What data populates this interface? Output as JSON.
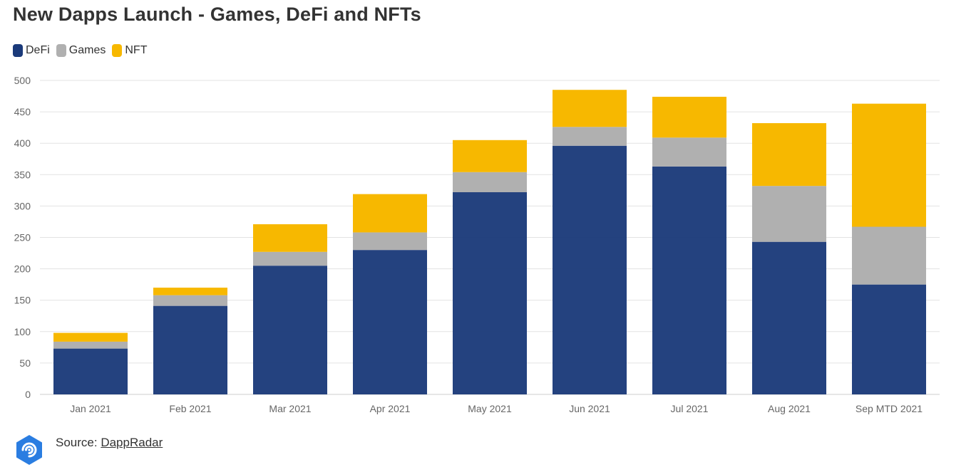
{
  "title": "New Dapps Launch - Games, DeFi and NFTs",
  "legend": [
    {
      "name": "DeFi",
      "color": "#1b3a7a"
    },
    {
      "name": "Games",
      "color": "#b0b0b0"
    },
    {
      "name": "NFT",
      "color": "#f7b800"
    }
  ],
  "source": {
    "prefix": "Source:",
    "link_text": "DappRadar"
  },
  "logo": {
    "icon": "dappradar-logo-icon",
    "color": "#2a7de1"
  },
  "chart_data": {
    "type": "bar",
    "stacked": true,
    "title": "New Dapps Launch - Games, DeFi and NFTs",
    "xlabel": "",
    "ylabel": "",
    "ylim": [
      0,
      500
    ],
    "yticks": [
      0,
      50,
      100,
      150,
      200,
      250,
      300,
      350,
      400,
      450,
      500
    ],
    "grid": true,
    "legend_position": "top-left",
    "categories": [
      "Jan 2021",
      "Feb 2021",
      "Mar 2021",
      "Apr 2021",
      "May 2021",
      "Jun 2021",
      "Jul 2021",
      "Aug 2021",
      "Sep MTD 2021"
    ],
    "series": [
      {
        "name": "DeFi",
        "color": "#1b3a7a",
        "values": [
          73,
          141,
          205,
          230,
          322,
          396,
          363,
          243,
          175
        ]
      },
      {
        "name": "Games",
        "color": "#b0b0b0",
        "values": [
          11,
          17,
          22,
          28,
          32,
          30,
          46,
          89,
          92
        ]
      },
      {
        "name": "NFT",
        "color": "#f7b800",
        "values": [
          14,
          12,
          44,
          61,
          51,
          59,
          65,
          100,
          196
        ]
      }
    ]
  }
}
